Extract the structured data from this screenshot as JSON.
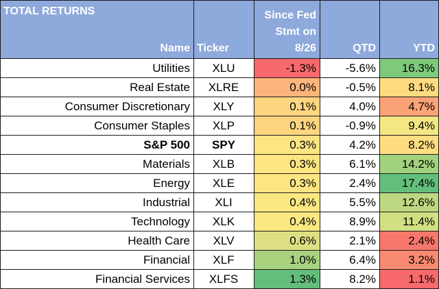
{
  "chart_data": {
    "type": "table",
    "title": "TOTAL RETURNS",
    "columns": {
      "name": "Name",
      "ticker": "Ticker",
      "since_lines": [
        "Since Fed",
        "Stmt on",
        "8/26"
      ],
      "qtd": "QTD",
      "ytd": "YTD"
    },
    "rows": [
      {
        "name": "Utilities",
        "ticker": "XLU",
        "since": "-1.3%",
        "qtd": "-5.6%",
        "ytd": "16.3%",
        "since_color": "#f8696b",
        "ytd_color": "#7fc97c",
        "bold": false
      },
      {
        "name": "Real Estate",
        "ticker": "XLRE",
        "since": "0.0%",
        "qtd": "-0.5%",
        "ytd": "8.1%",
        "since_color": "#fcb57a",
        "ytd_color": "#fedb81",
        "bold": false
      },
      {
        "name": "Consumer Discretionary",
        "ticker": "XLY",
        "since": "0.1%",
        "qtd": "4.0%",
        "ytd": "4.7%",
        "since_color": "#fed680",
        "ytd_color": "#fba276",
        "bold": false
      },
      {
        "name": "Consumer Staples",
        "ticker": "XLP",
        "since": "0.1%",
        "qtd": "-0.9%",
        "ytd": "9.4%",
        "since_color": "#fed680",
        "ytd_color": "#f3e783",
        "bold": false
      },
      {
        "name": "S&P 500",
        "ticker": "SPY",
        "since": "0.3%",
        "qtd": "4.2%",
        "ytd": "8.2%",
        "since_color": "#fee583",
        "ytd_color": "#fedc81",
        "bold": true
      },
      {
        "name": "Materials",
        "ticker": "XLB",
        "since": "0.3%",
        "qtd": "6.1%",
        "ytd": "14.2%",
        "since_color": "#fee583",
        "ytd_color": "#a3d27f",
        "bold": false
      },
      {
        "name": "Energy",
        "ticker": "XLE",
        "since": "0.3%",
        "qtd": "2.4%",
        "ytd": "17.4%",
        "since_color": "#fee583",
        "ytd_color": "#63be7b",
        "bold": false
      },
      {
        "name": "Industrial",
        "ticker": "XLI",
        "since": "0.4%",
        "qtd": "5.5%",
        "ytd": "12.6%",
        "since_color": "#fae883",
        "ytd_color": "#bdd881",
        "bold": false
      },
      {
        "name": "Technology",
        "ticker": "XLK",
        "since": "0.4%",
        "qtd": "8.9%",
        "ytd": "11.4%",
        "since_color": "#fae883",
        "ytd_color": "#d2df82",
        "bold": false
      },
      {
        "name": "Health Care",
        "ticker": "XLV",
        "since": "0.6%",
        "qtd": "2.1%",
        "ytd": "2.4%",
        "since_color": "#dde082",
        "ytd_color": "#f8776d",
        "bold": false
      },
      {
        "name": "Financial",
        "ticker": "XLF",
        "since": "1.0%",
        "qtd": "6.4%",
        "ytd": "3.2%",
        "since_color": "#a9d27f",
        "ytd_color": "#f98a72",
        "bold": false
      },
      {
        "name": "Financial Services",
        "ticker": "XLFS",
        "since": "1.3%",
        "qtd": "8.2%",
        "ytd": "1.1%",
        "since_color": "#63be7b",
        "ytd_color": "#f8696b",
        "bold": false
      }
    ]
  }
}
